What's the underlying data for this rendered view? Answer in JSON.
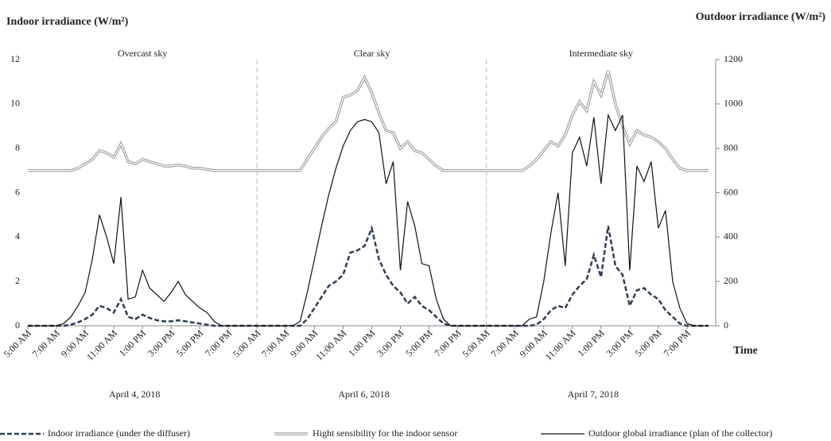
{
  "chart_data": {
    "type": "line",
    "y_title": "Indoor irradiance (W/m²)",
    "y2_title": "Outdoor irradiance (W/m²)",
    "x_title": "Time",
    "days": [
      {
        "label": "April 4, 2018",
        "sky": "Overcast sky"
      },
      {
        "label": "April 6, 2018",
        "sky": "Clear sky"
      },
      {
        "label": "April 7, 2018",
        "sky": "Intermediate sky"
      }
    ],
    "categories": [
      "5:00 AM",
      null,
      null,
      null,
      "7:00 AM",
      null,
      null,
      null,
      "9:00 AM",
      null,
      null,
      null,
      "11:00 AM",
      null,
      null,
      null,
      "1:00 PM",
      null,
      null,
      null,
      "3:00 PM",
      null,
      null,
      null,
      "5:00 PM",
      null,
      null,
      null,
      "7:00 PM",
      null,
      null,
      null,
      "5:00 AM",
      null,
      null,
      null,
      "7:00 AM",
      null,
      null,
      null,
      "9:00 AM",
      null,
      null,
      null,
      "11:00 AM",
      null,
      null,
      null,
      "1:00 PM",
      null,
      null,
      null,
      "3:00 PM",
      null,
      null,
      null,
      "5:00 PM",
      null,
      null,
      null,
      "7:00 PM",
      null,
      null,
      null,
      "5:00 AM",
      null,
      null,
      null,
      "7:00 AM",
      null,
      null,
      null,
      "9:00 AM",
      null,
      null,
      null,
      "11:00 AM",
      null,
      null,
      null,
      "1:00 PM",
      null,
      null,
      null,
      "3:00 PM",
      null,
      null,
      null,
      "5:00 PM",
      null,
      null,
      null,
      "7:00 PM",
      null,
      null,
      null
    ],
    "ylim": [
      0,
      12
    ],
    "yticks": [
      0,
      2,
      4,
      6,
      8,
      10,
      12
    ],
    "y2lim": [
      0,
      1200
    ],
    "y2ticks": [
      0,
      200,
      400,
      600,
      800,
      1000,
      1200
    ],
    "series": [
      {
        "name": "Indoor irradiance (under the diffuser)",
        "color": "#2e3e55",
        "dash": true,
        "values": [
          0,
          0,
          0,
          0,
          0,
          0,
          0.05,
          0.15,
          0.3,
          0.5,
          0.9,
          0.8,
          0.6,
          1.2,
          0.4,
          0.3,
          0.5,
          0.35,
          0.25,
          0.2,
          0.2,
          0.25,
          0.2,
          0.15,
          0.1,
          0.05,
          0,
          0,
          0,
          0,
          0,
          0,
          0,
          0,
          0,
          0,
          0,
          0,
          0,
          0.3,
          0.8,
          1.3,
          1.8,
          2.0,
          2.3,
          3.3,
          3.4,
          3.6,
          4.4,
          3.0,
          2.3,
          1.8,
          1.5,
          1.0,
          1.3,
          0.9,
          0.7,
          0.4,
          0.1,
          0,
          0,
          0,
          0,
          0,
          0,
          0,
          0,
          0,
          0,
          0,
          0,
          0.05,
          0.3,
          0.7,
          0.9,
          0.8,
          1.4,
          1.8,
          2.1,
          3.2,
          2.2,
          4.5,
          2.7,
          2.3,
          0.9,
          1.6,
          1.7,
          1.4,
          1.2,
          0.7,
          0.4,
          0.1,
          0,
          0,
          0,
          0
        ]
      },
      {
        "name": "Hight sensibility for the indoor sensor",
        "color": "#a0a0a0",
        "double": true,
        "values": [
          7,
          7,
          7,
          7,
          7,
          7,
          7,
          7.1,
          7.3,
          7.5,
          7.9,
          7.8,
          7.6,
          8.2,
          7.4,
          7.3,
          7.5,
          7.4,
          7.3,
          7.2,
          7.2,
          7.25,
          7.2,
          7.1,
          7.1,
          7.05,
          7,
          7,
          7,
          7,
          7,
          7,
          7,
          7,
          7,
          7,
          7,
          7,
          7,
          7.5,
          8,
          8.5,
          8.9,
          9.2,
          10.3,
          10.4,
          10.6,
          11.2,
          10.5,
          9.6,
          8.8,
          8.7,
          8.0,
          8.3,
          7.9,
          7.8,
          7.5,
          7.2,
          7,
          7,
          7,
          7,
          7,
          7,
          7,
          7,
          7,
          7,
          7,
          7,
          7.2,
          7.5,
          7.9,
          8.3,
          8.1,
          8.6,
          9.5,
          10.1,
          9.7,
          11.0,
          10.4,
          11.5,
          10.0,
          9.0,
          8.2,
          8.8,
          8.6,
          8.5,
          8.3,
          8.0,
          7.5,
          7.1,
          7,
          7,
          7,
          7
        ]
      },
      {
        "name": "Outdoor global irradiance (plan of the collector)",
        "color": "#111111",
        "axis": "y2",
        "values": [
          0,
          0,
          0,
          0,
          0,
          10,
          40,
          90,
          150,
          300,
          500,
          400,
          280,
          580,
          120,
          130,
          250,
          170,
          140,
          110,
          150,
          200,
          140,
          110,
          80,
          60,
          20,
          0,
          0,
          0,
          0,
          0,
          0,
          0,
          0,
          0,
          0,
          0,
          20,
          150,
          300,
          450,
          590,
          710,
          810,
          880,
          920,
          930,
          920,
          870,
          640,
          740,
          250,
          560,
          450,
          280,
          270,
          120,
          30,
          0,
          0,
          0,
          0,
          0,
          0,
          0,
          0,
          0,
          0,
          0,
          30,
          40,
          200,
          420,
          600,
          270,
          780,
          850,
          720,
          940,
          640,
          950,
          880,
          950,
          250,
          720,
          650,
          740,
          440,
          520,
          200,
          80,
          10,
          0,
          0,
          0
        ]
      }
    ]
  }
}
